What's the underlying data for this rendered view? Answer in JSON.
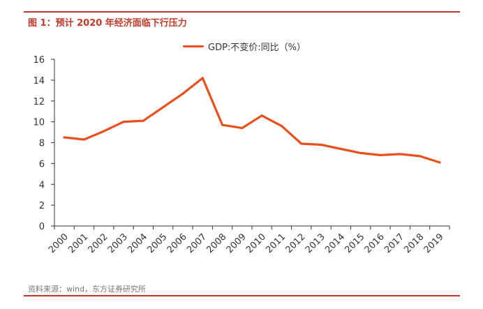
{
  "figure": {
    "title": "图 1：预计 2020 年经济面临下行压力",
    "source": "资料来源：wind，东方证券研究所"
  },
  "colors": {
    "accent": "#c0392b",
    "series": "#e8501e",
    "axis": "#333333",
    "text": "#333333"
  },
  "chart_data": {
    "type": "line",
    "title": "",
    "xlabel": "",
    "ylabel": "",
    "ylim": [
      0,
      16
    ],
    "yticks": [
      0,
      2,
      4,
      6,
      8,
      10,
      12,
      14,
      16
    ],
    "grid": false,
    "legend_position": "top-center",
    "categories": [
      "2000",
      "2001",
      "2002",
      "2003",
      "2004",
      "2005",
      "2006",
      "2007",
      "2008",
      "2009",
      "2010",
      "2011",
      "2012",
      "2013",
      "2014",
      "2015",
      "2016",
      "2017",
      "2018",
      "2019"
    ],
    "series": [
      {
        "name": "GDP:不变价:同比（%）",
        "values": [
          8.5,
          8.3,
          9.1,
          10.0,
          10.1,
          11.4,
          12.7,
          14.2,
          9.7,
          9.4,
          10.6,
          9.6,
          7.9,
          7.8,
          7.4,
          7.0,
          6.8,
          6.9,
          6.7,
          6.1
        ]
      }
    ]
  }
}
